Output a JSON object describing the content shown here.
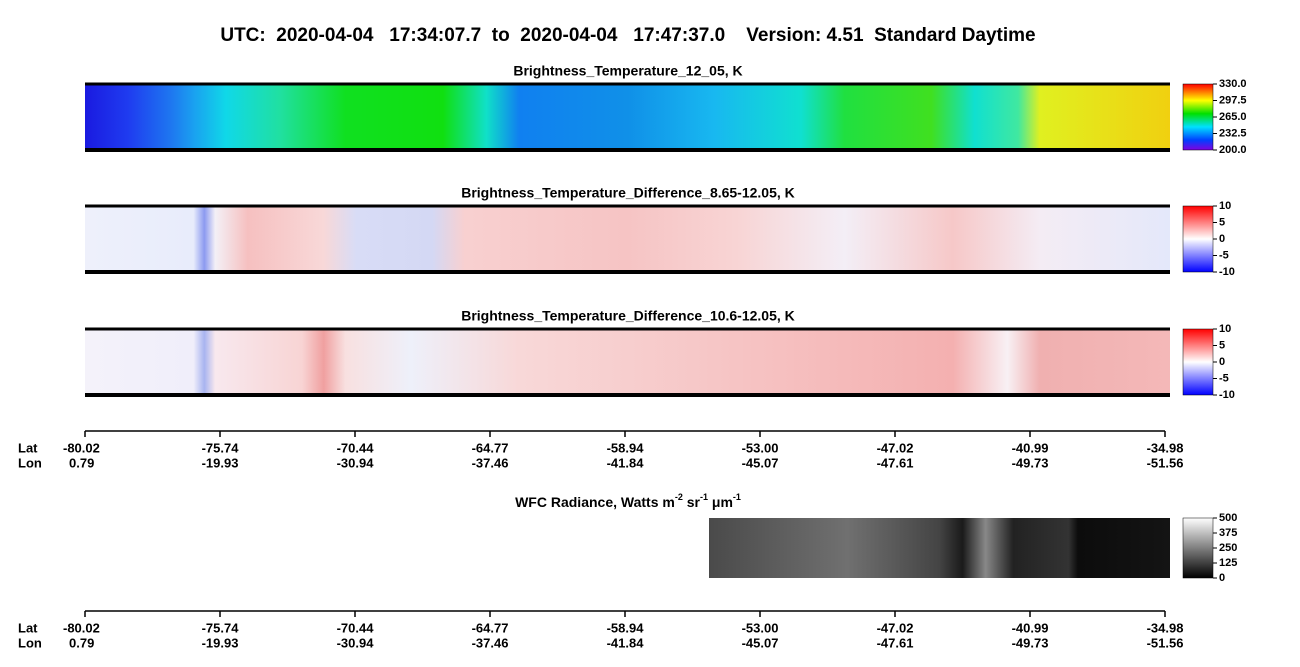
{
  "title": "UTC:  2020-04-04   17:34:07.7  to  2020-04-04   17:47:37.0    Version: 4.51  Standard Daytime",
  "panels": [
    {
      "title": "Brightness_Temperature_12_05, K",
      "colorbar": [
        "330.0",
        "297.5",
        "265.0",
        "232.5",
        "200.0"
      ]
    },
    {
      "title": "Brightness_Temperature_Difference_8.65-12.05, K",
      "colorbar": [
        "10",
        "5",
        "0",
        "-5",
        "-10"
      ]
    },
    {
      "title": "Brightness_Temperature_Difference_10.6-12.05, K",
      "colorbar": [
        "10",
        "5",
        "0",
        "-5",
        "-10"
      ]
    }
  ],
  "axis": {
    "lat_label": "Lat",
    "lon_label": "Lon",
    "lat": [
      "-80.02",
      "-75.74",
      "-70.44",
      "-64.77",
      "-58.94",
      "-53.00",
      "-47.02",
      "-40.99",
      "-34.98"
    ],
    "lon": [
      "0.79",
      "-19.93",
      "-30.94",
      "-37.46",
      "-41.84",
      "-45.07",
      "-47.61",
      "-49.73",
      "-51.56"
    ]
  },
  "wfc": {
    "title_parts": [
      "WFC Radiance, Watts m",
      "-2",
      " sr",
      "-1",
      " μm",
      "-1"
    ],
    "colorbar": [
      "500",
      "375",
      "250",
      "125",
      "0"
    ]
  }
}
